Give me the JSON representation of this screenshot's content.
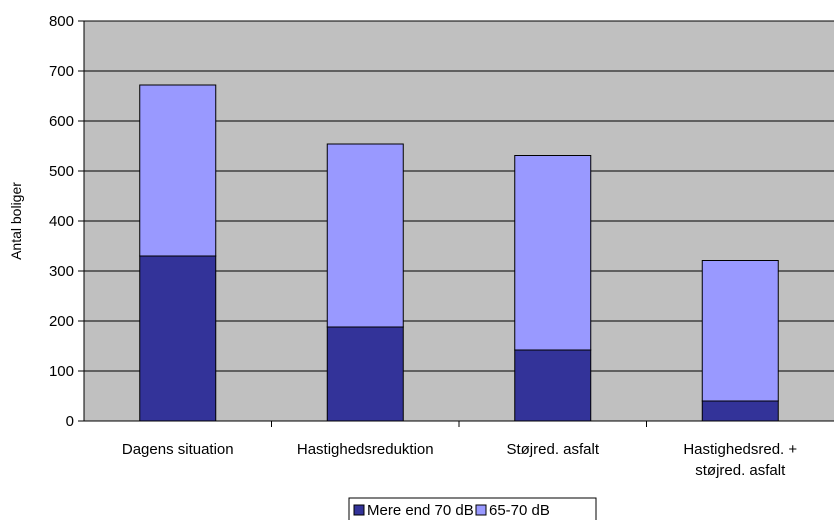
{
  "chart_data": {
    "type": "bar",
    "stacked": true,
    "title": "",
    "xlabel": "",
    "ylabel": "Antal boliger",
    "ylim": [
      0,
      800
    ],
    "yticks": [
      "0",
      "100",
      "200",
      "300",
      "400",
      "500",
      "600",
      "700",
      "800"
    ],
    "categories": [
      [
        "Dagens situation"
      ],
      [
        "Hastighedsreduktion"
      ],
      [
        "Støjred. asfalt"
      ],
      [
        "Hastighedsred. +",
        "støjred. asfalt"
      ]
    ],
    "series": [
      {
        "name": "Mere end 70 dB",
        "color": "#333399",
        "values": [
          330,
          188,
          142,
          40
        ]
      },
      {
        "name": "65-70 dB",
        "color": "#9999ff",
        "values": [
          342,
          366,
          389,
          281
        ]
      }
    ],
    "plot_background": "#c0c0c0",
    "grid": true,
    "legend_position": "bottom"
  }
}
